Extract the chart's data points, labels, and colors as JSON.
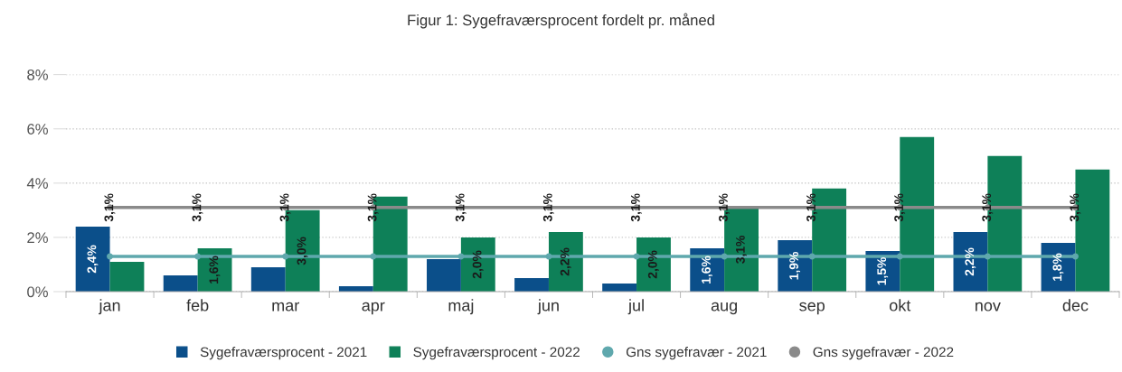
{
  "chart_data": {
    "type": "bar",
    "title": "Figur 1: Sygefraværsprocent fordelt pr. måned",
    "categories": [
      "jan",
      "feb",
      "mar",
      "apr",
      "maj",
      "jun",
      "jul",
      "aug",
      "sep",
      "okt",
      "nov",
      "dec"
    ],
    "series": [
      {
        "name": "Sygefraværsprocent - 2021",
        "color": "#0b4f8a",
        "values": [
          2.4,
          0.6,
          0.9,
          0.2,
          1.2,
          0.5,
          0.3,
          1.6,
          1.9,
          1.5,
          2.2,
          1.8
        ],
        "value_labels": [
          "2,4%",
          null,
          null,
          null,
          null,
          null,
          null,
          "1,6%",
          "1,9%",
          "1,5%",
          "2,2%",
          "1,8%"
        ]
      },
      {
        "name": "Sygefraværsprocent - 2022",
        "color": "#0e8058",
        "values": [
          1.1,
          1.6,
          3.0,
          3.5,
          2.0,
          2.2,
          2.0,
          3.1,
          3.8,
          5.7,
          5.0,
          4.5
        ],
        "value_labels": [
          null,
          "1,6%",
          "3,0%",
          null,
          "2,0%",
          "2,2%",
          "2,0%",
          "3,1%",
          null,
          null,
          null,
          null
        ]
      },
      {
        "name": "Gns sygefravær - 2021",
        "type": "line",
        "color": "#5fa8ad",
        "marker": "circle",
        "values": [
          1.3,
          1.3,
          1.3,
          1.3,
          1.3,
          1.3,
          1.3,
          1.3,
          1.3,
          1.3,
          1.3,
          1.3
        ]
      },
      {
        "name": "Gns sygefravær - 2022",
        "type": "line",
        "color": "#8a8a8a",
        "marker": "circle",
        "values": [
          3.1,
          3.1,
          3.1,
          3.1,
          3.1,
          3.1,
          3.1,
          3.1,
          3.1,
          3.1,
          3.1,
          3.1
        ],
        "value_labels": [
          "3,1%",
          "3,1%",
          "3,1%",
          "3,1%",
          "3,1%",
          "3,1%",
          "3,1%",
          "3,1%",
          "3,1%",
          "3,1%",
          "3,1%",
          "3,1%"
        ]
      }
    ],
    "ylim": [
      0,
      8
    ],
    "yticks": [
      {
        "value": 0,
        "label": "0%"
      },
      {
        "value": 2,
        "label": "2%"
      },
      {
        "value": 4,
        "label": "4%"
      },
      {
        "value": 6,
        "label": "6%"
      },
      {
        "value": 8,
        "label": "8%"
      }
    ],
    "grid": "y",
    "legend": "bottom"
  }
}
